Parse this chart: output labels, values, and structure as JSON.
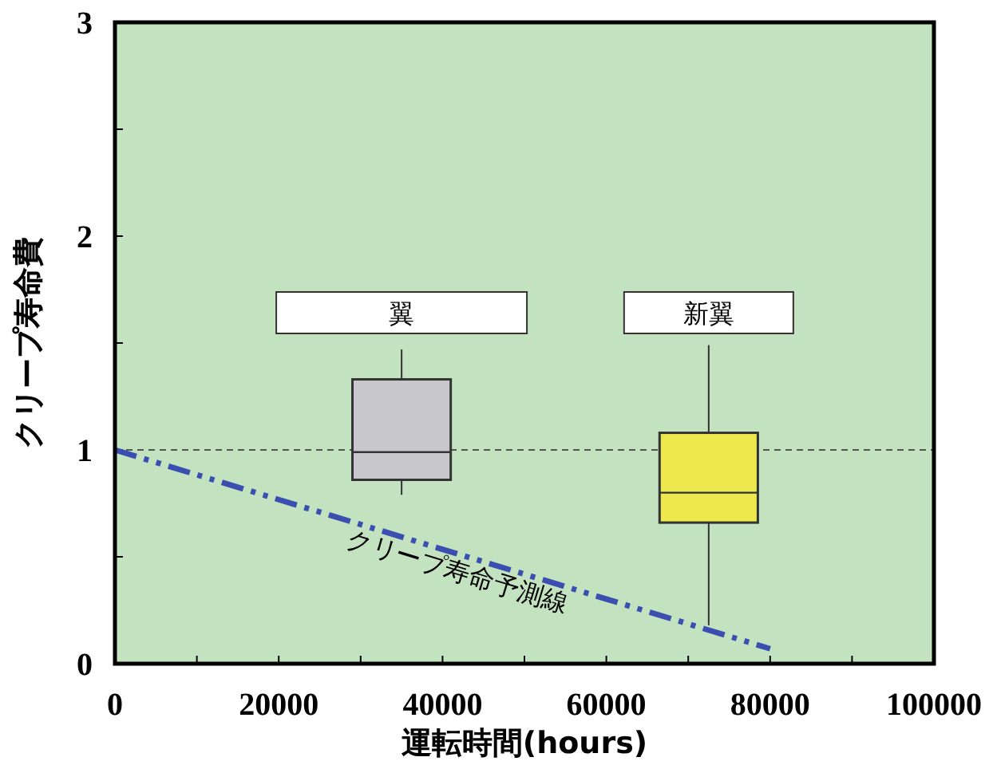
{
  "chart_data": {
    "type": "box",
    "xlabel": "運転時間(hours)",
    "ylabel": "クリープ寿命費",
    "xlim": [
      0,
      100000
    ],
    "ylim": [
      0,
      3
    ],
    "xticks": [
      0,
      {
        "value": 10000,
        "label": null
      },
      20000,
      {
        "value": 30000,
        "label": null
      },
      40000,
      {
        "value": 50000,
        "label": null
      },
      60000,
      {
        "value": 70000,
        "label": null
      },
      80000,
      {
        "value": 90000,
        "label": null
      },
      100000
    ],
    "yticks": [
      0,
      {
        "value": 0.5,
        "label": null
      },
      1,
      {
        "value": 1.5,
        "label": null
      },
      2,
      {
        "value": 2.5,
        "label": null
      },
      3
    ],
    "series": [
      {
        "x": [
          35000,
          72500
        ],
        "colors": [
          "#c8c8cc",
          "#ece84e"
        ],
        "boxes": [
          {
            "low": 0.79,
            "q1": 0.86,
            "median": 0.99,
            "q3": 1.33,
            "high": 1.47
          },
          {
            "low": 0.18,
            "q1": 0.66,
            "median": 0.8,
            "q3": 1.08,
            "high": 1.49
          }
        ]
      },
      {
        "type": "line",
        "x": [
          0,
          80000
        ],
        "values": [
          1,
          0.07
        ],
        "color": "#3a4fb0",
        "line_style": "dashdot"
      }
    ],
    "ref_lines": [
      {
        "axis": "y",
        "value": 1,
        "color": "#555555",
        "line_style": "dashed"
      }
    ],
    "annotations": [
      "翼",
      "新翼",
      "クリープ寿命予測線"
    ]
  }
}
